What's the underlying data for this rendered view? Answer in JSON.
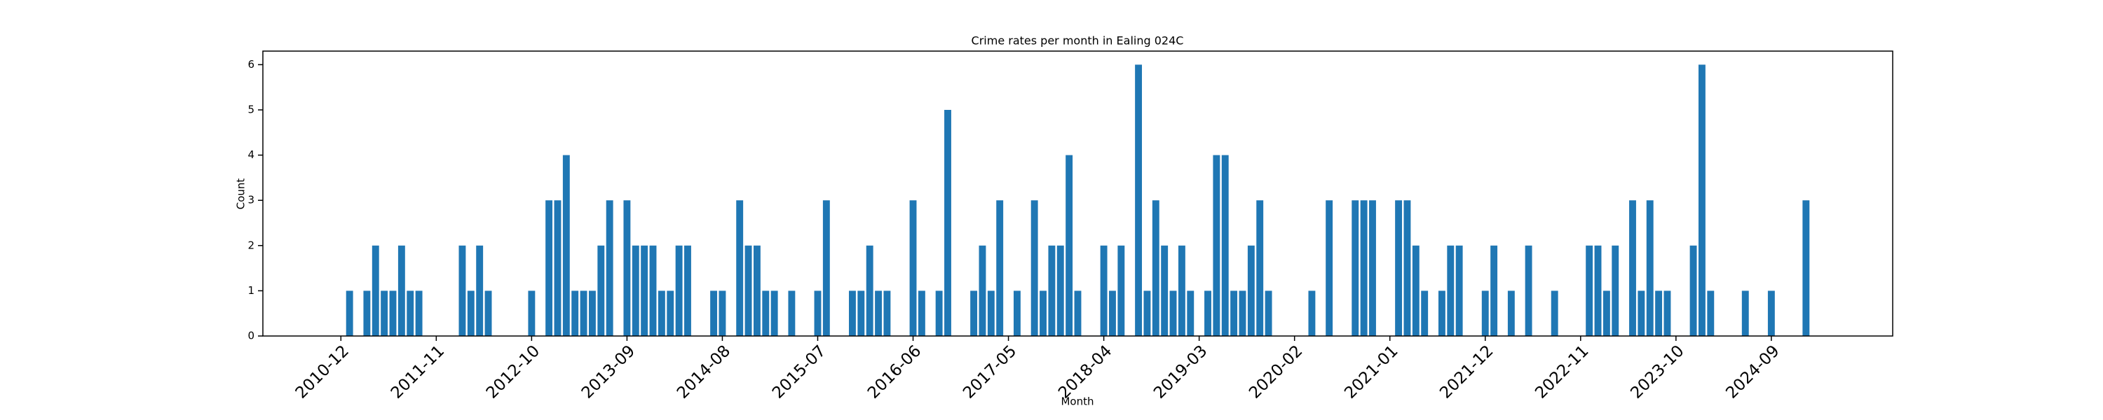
{
  "chart_data": {
    "type": "bar",
    "title": "Crime rates per month in Ealing 024C",
    "xlabel": "Month",
    "ylabel": "Count",
    "x": [
      "2011-01",
      "2011-03",
      "2011-04",
      "2011-05",
      "2011-06",
      "2011-07",
      "2011-08",
      "2011-09",
      "2012-02",
      "2012-03",
      "2012-04",
      "2012-05",
      "2012-10",
      "2012-12",
      "2013-01",
      "2013-02",
      "2013-03",
      "2013-04",
      "2013-05",
      "2013-06",
      "2013-07",
      "2013-09",
      "2013-10",
      "2013-11",
      "2013-12",
      "2014-01",
      "2014-02",
      "2014-03",
      "2014-04",
      "2014-07",
      "2014-08",
      "2014-10",
      "2014-11",
      "2014-12",
      "2015-01",
      "2015-02",
      "2015-04",
      "2015-07",
      "2015-08",
      "2015-11",
      "2015-12",
      "2016-01",
      "2016-02",
      "2016-03",
      "2016-06",
      "2016-07",
      "2016-09",
      "2016-10",
      "2017-01",
      "2017-02",
      "2017-03",
      "2017-04",
      "2017-06",
      "2017-08",
      "2017-09",
      "2017-10",
      "2017-11",
      "2017-12",
      "2018-01",
      "2018-04",
      "2018-05",
      "2018-06",
      "2018-08",
      "2018-09",
      "2018-10",
      "2018-11",
      "2018-12",
      "2019-01",
      "2019-02",
      "2019-04",
      "2019-05",
      "2019-06",
      "2019-07",
      "2019-08",
      "2019-09",
      "2019-10",
      "2019-11",
      "2020-04",
      "2020-06",
      "2020-09",
      "2020-10",
      "2020-11",
      "2021-02",
      "2021-03",
      "2021-04",
      "2021-05",
      "2021-07",
      "2021-08",
      "2021-09",
      "2021-12",
      "2022-01",
      "2022-03",
      "2022-05",
      "2022-08",
      "2022-12",
      "2023-01",
      "2023-02",
      "2023-03",
      "2023-05",
      "2023-06",
      "2023-07",
      "2023-08",
      "2023-09",
      "2023-12",
      "2024-01",
      "2024-02",
      "2024-06",
      "2024-09",
      "2025-01"
    ],
    "values": [
      1,
      1,
      2,
      1,
      1,
      2,
      1,
      1,
      2,
      1,
      2,
      1,
      1,
      3,
      3,
      4,
      1,
      1,
      1,
      2,
      3,
      3,
      2,
      2,
      2,
      1,
      1,
      2,
      2,
      1,
      1,
      3,
      2,
      2,
      1,
      1,
      1,
      1,
      3,
      1,
      1,
      2,
      1,
      1,
      3,
      1,
      1,
      5,
      1,
      2,
      1,
      3,
      1,
      3,
      1,
      2,
      2,
      4,
      1,
      2,
      1,
      2,
      6,
      1,
      3,
      2,
      1,
      2,
      1,
      1,
      4,
      4,
      1,
      1,
      2,
      3,
      1,
      1,
      3,
      3,
      3,
      3,
      3,
      3,
      2,
      1,
      1,
      2,
      2,
      1,
      2,
      1,
      2,
      1,
      2,
      2,
      1,
      2,
      3,
      1,
      3,
      1,
      1,
      2,
      6,
      1,
      1,
      1,
      3
    ],
    "color": "#1f77b4",
    "xlim": [
      "2010-03",
      "2025-11"
    ],
    "xticks": [
      "2010-12",
      "2011-11",
      "2012-10",
      "2013-09",
      "2014-08",
      "2015-07",
      "2016-06",
      "2017-05",
      "2018-04",
      "2019-03",
      "2020-02",
      "2021-01",
      "2021-12",
      "2022-11",
      "2023-10",
      "2024-09"
    ],
    "ylim": [
      0,
      6.3
    ],
    "yticks": [
      0,
      1,
      2,
      3,
      4,
      5,
      6
    ]
  }
}
